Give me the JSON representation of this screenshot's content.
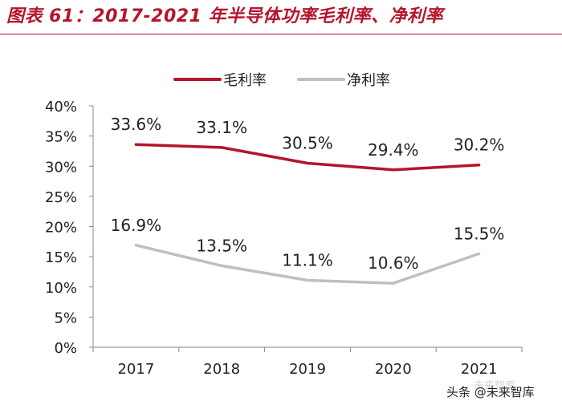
{
  "chart_data": {
    "type": "line",
    "title": "图表 61：2017-2021 年半导体功率毛利率、净利率",
    "categories": [
      "2017",
      "2018",
      "2019",
      "2020",
      "2021"
    ],
    "series": [
      {
        "name": "毛利率",
        "values": [
          33.6,
          33.1,
          30.5,
          29.4,
          30.2
        ],
        "labels": [
          "33.6%",
          "33.1%",
          "30.5%",
          "29.4%",
          "30.2%"
        ],
        "color": "#b5152b"
      },
      {
        "name": "净利率",
        "values": [
          16.9,
          13.5,
          11.1,
          10.6,
          15.5
        ],
        "labels": [
          "16.9%",
          "13.5%",
          "11.1%",
          "10.6%",
          "15.5%"
        ],
        "color": "#bfbfbf"
      }
    ],
    "ylim": [
      0,
      40
    ],
    "yticks": [
      "0%",
      "5%",
      "10%",
      "15%",
      "20%",
      "25%",
      "30%",
      "35%",
      "40%"
    ],
    "legend_position": "top-center",
    "grid": false
  },
  "watermark": {
    "text": "头条 @未来智库",
    "faint_text": "未来智库"
  },
  "colors": {
    "title": "#b5152b",
    "axis": "#888888",
    "text": "#222222"
  }
}
